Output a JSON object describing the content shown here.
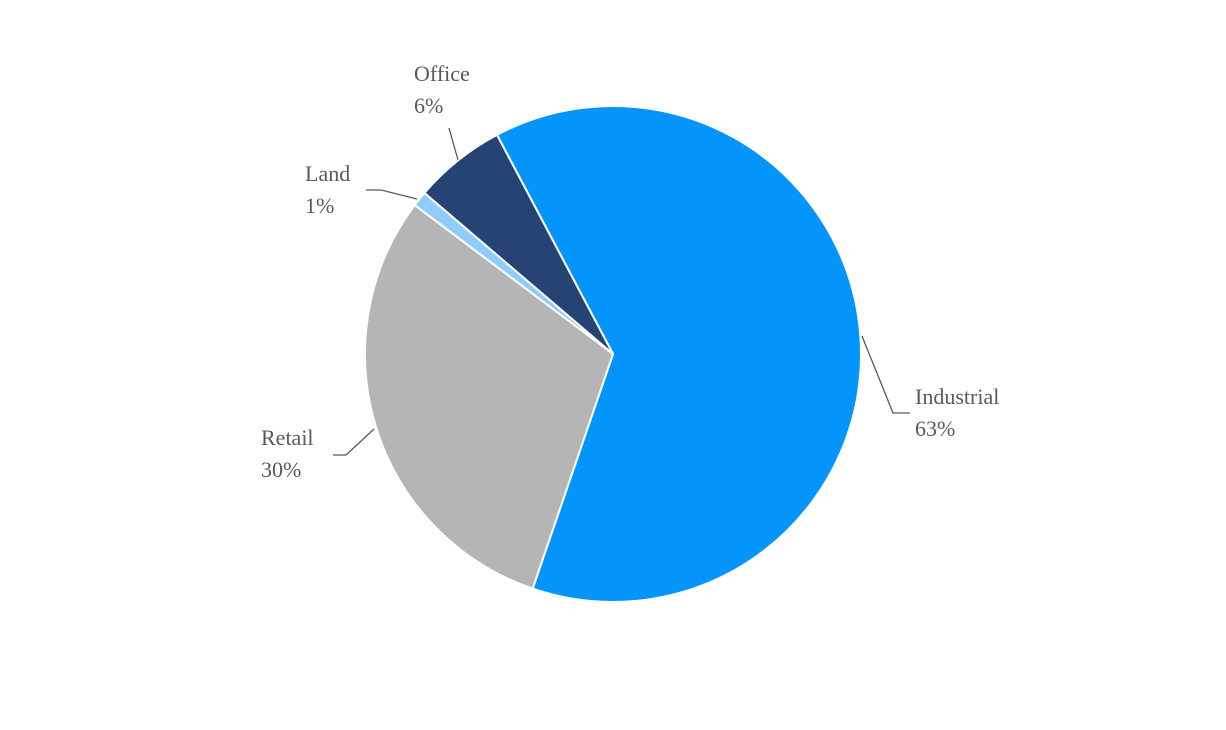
{
  "chart_data": {
    "type": "pie",
    "categories": [
      "Industrial",
      "Retail",
      "Land",
      "Office"
    ],
    "values": [
      63,
      30,
      1,
      6
    ],
    "value_labels": [
      "63%",
      "30%",
      "1%",
      "6%"
    ],
    "colors": [
      "#0394fc",
      "#b5b5b5",
      "#8fcbfb",
      "#254374"
    ]
  }
}
